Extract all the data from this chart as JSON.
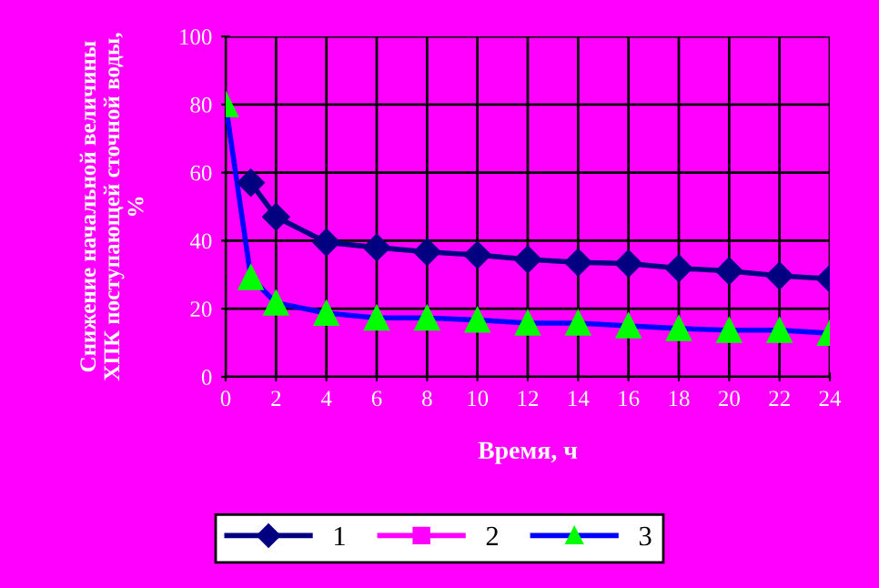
{
  "chart_data": {
    "type": "line",
    "xlabel": "Время, ч",
    "ylabel": "Снижение начальной величины\nХПК поступающей сточной воды,\n%",
    "x": [
      0,
      1,
      2,
      4,
      6,
      8,
      10,
      12,
      14,
      16,
      18,
      20,
      22,
      24
    ],
    "series": [
      {
        "name": "1",
        "color": "#000080",
        "marker": "diamond",
        "values": [
          null,
          57,
          47,
          39.5,
          38,
          36.7,
          35.8,
          34.5,
          33.6,
          33.3,
          31.9,
          31.1,
          29.7,
          28.8
        ]
      },
      {
        "name": "2",
        "color": "#ff00ff",
        "marker": "square",
        "values": [
          null,
          null,
          null,
          null,
          null,
          null,
          null,
          null,
          null,
          null,
          null,
          null,
          null,
          null
        ]
      },
      {
        "name": "3",
        "color": "#0000ff",
        "marker": "triangle",
        "colors": [
          "#00ff00",
          "#00ff00",
          "#00ff00",
          "#00ff00",
          "#00ff00",
          "#00ff00",
          "#00ff00",
          "#00ff00",
          "#00ff00",
          "#00ff00",
          "#00ff00",
          "#00ff00",
          "#00ff00",
          "#00ff00"
        ],
        "values": [
          80,
          29.2,
          21.7,
          18.7,
          17.3,
          17.3,
          16.7,
          15.8,
          15.8,
          15,
          14.2,
          13.7,
          13.7,
          12.8
        ]
      }
    ],
    "xlim": [
      0,
      24
    ],
    "xticks": [
      0,
      2,
      4,
      6,
      8,
      10,
      12,
      14,
      16,
      18,
      20,
      22,
      24
    ],
    "ylim": [
      0,
      100
    ],
    "yticks": [
      0,
      20,
      40,
      60,
      80,
      100
    ],
    "grid": true,
    "legend": "bottom"
  }
}
